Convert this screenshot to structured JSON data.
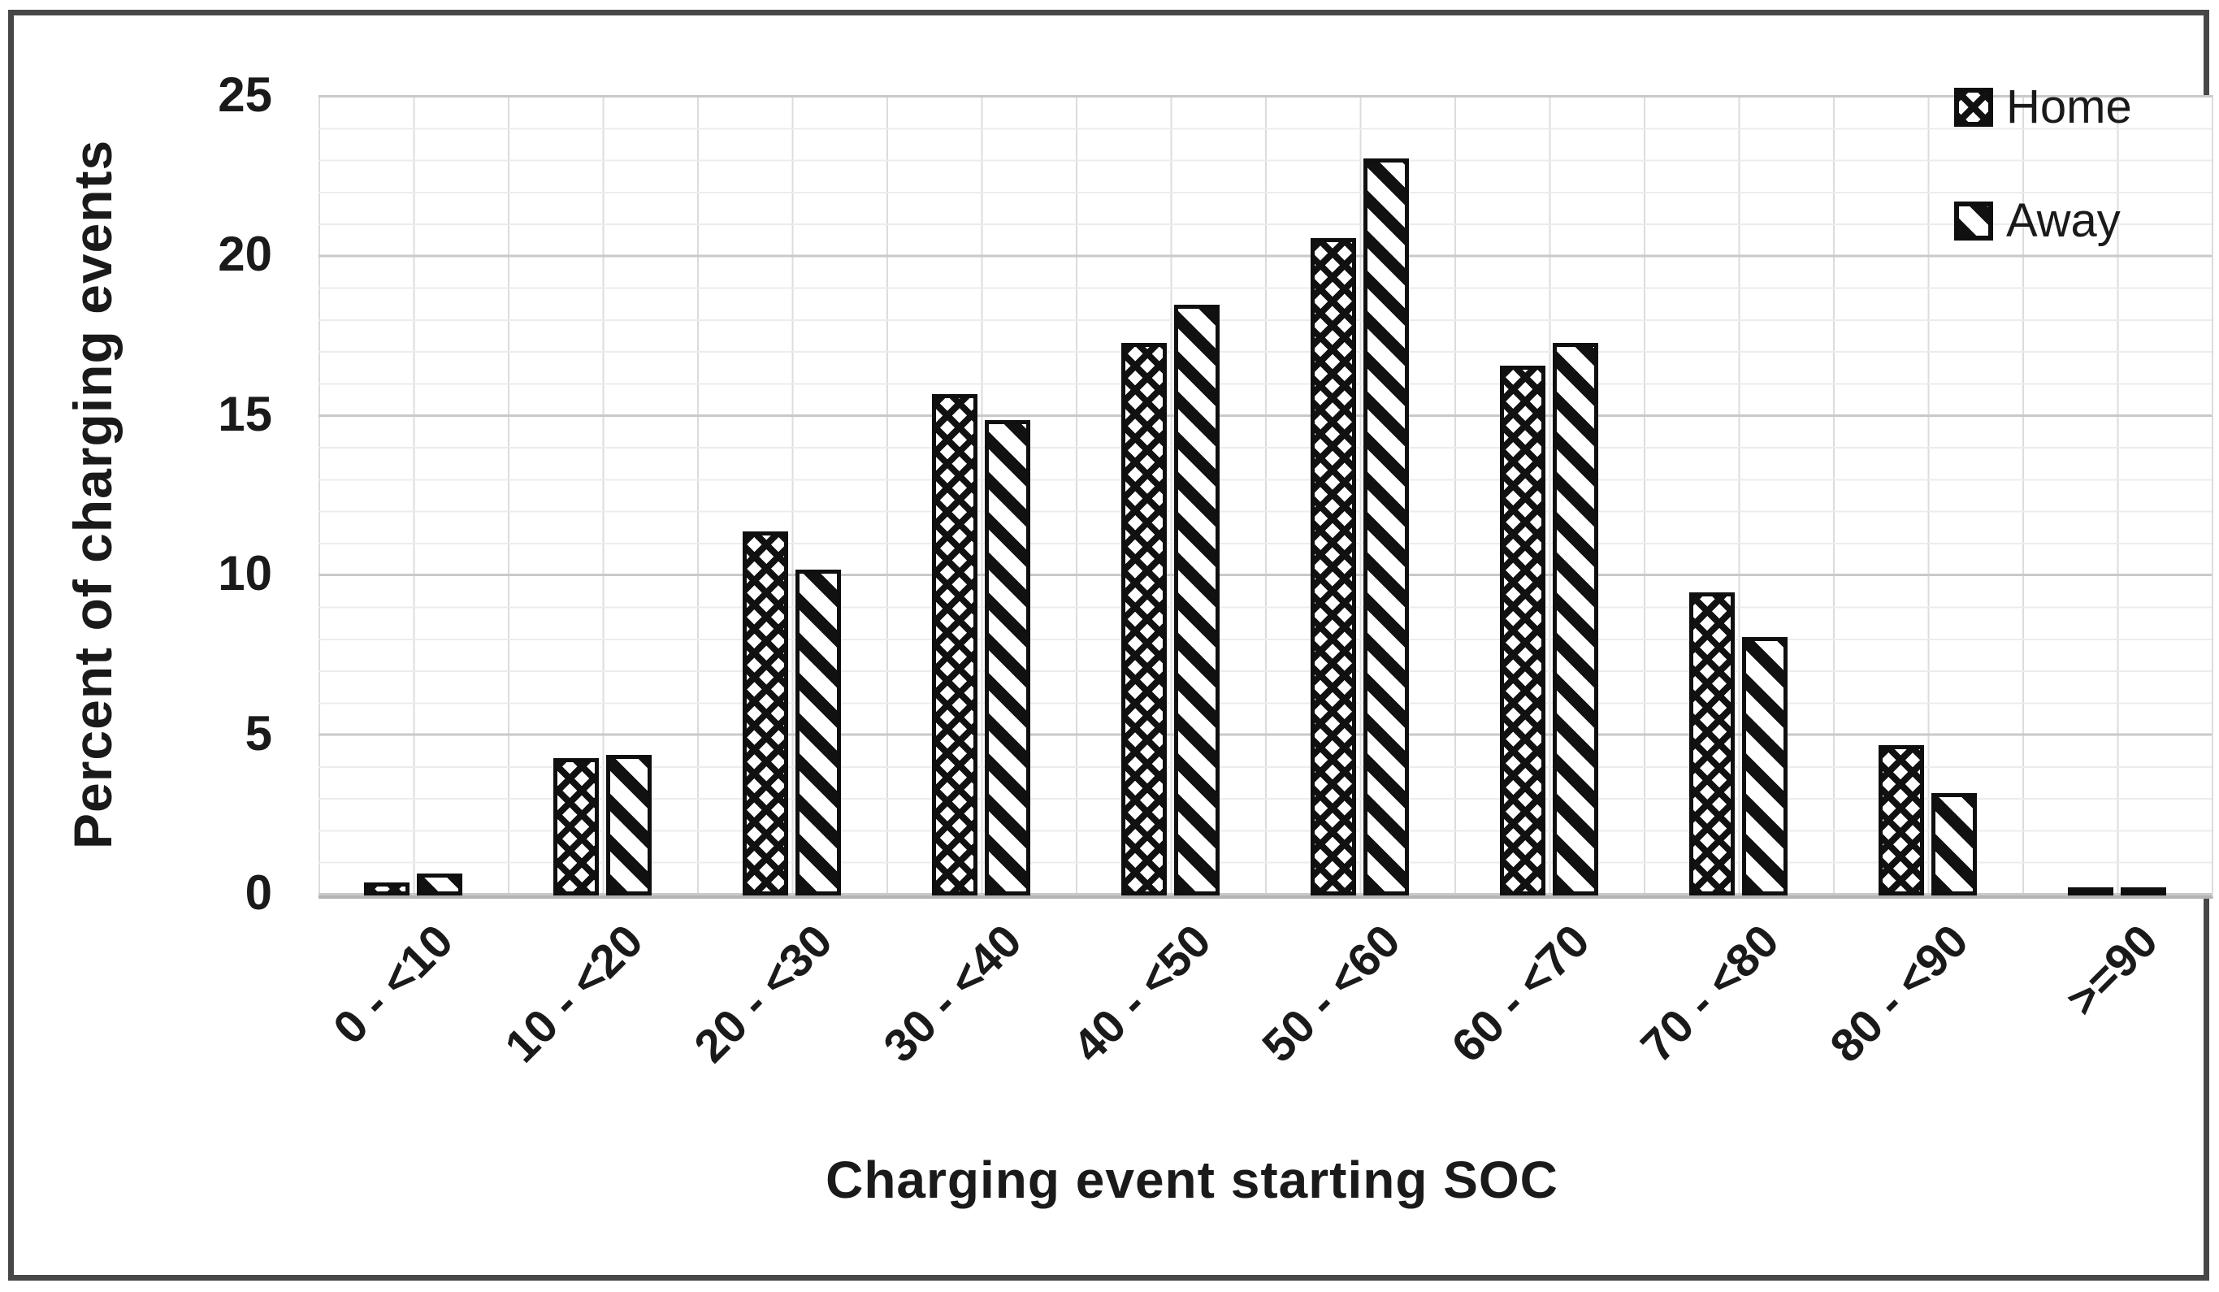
{
  "chart_data": {
    "type": "bar",
    "title": "",
    "xlabel": "Charging event starting SOC",
    "ylabel": "Percent of charging events",
    "categories": [
      "0 - <10",
      "10 - <20",
      "20 - <30",
      "30 - <40",
      "40 - <50",
      "50 - <60",
      "60 - <70",
      "70 - <80",
      "80 - <90",
      ">=90"
    ],
    "series": [
      {
        "name": "Home",
        "pattern": "crosshatch",
        "values": [
          0.4,
          4.3,
          11.4,
          15.7,
          17.3,
          20.6,
          16.6,
          9.5,
          4.7,
          0.2
        ]
      },
      {
        "name": "Away",
        "pattern": "diagonal",
        "values": [
          0.7,
          4.4,
          10.2,
          14.9,
          18.5,
          23.1,
          17.3,
          8.1,
          3.2,
          0.2
        ]
      }
    ],
    "ylim": [
      0,
      25
    ],
    "yticks": [
      0,
      5,
      10,
      15,
      20,
      25
    ],
    "grid": {
      "horizontal_minor_step": 1,
      "horizontal_major_step": 5,
      "vertical": true,
      "vertical_step_fraction_of_category": 0.5
    },
    "legend_position": "top-right-inside"
  },
  "colors": {
    "frame": "#474747",
    "bar_stroke": "#0f0f0f",
    "bar_fill": "#ffffff",
    "grid_minor": "#ececec",
    "grid_major": "#c9c9c9",
    "grid_vertical": "#dcdcdc",
    "axis_line": "#b3b3b3",
    "text": "#1a1a1a",
    "background": "#ffffff"
  }
}
